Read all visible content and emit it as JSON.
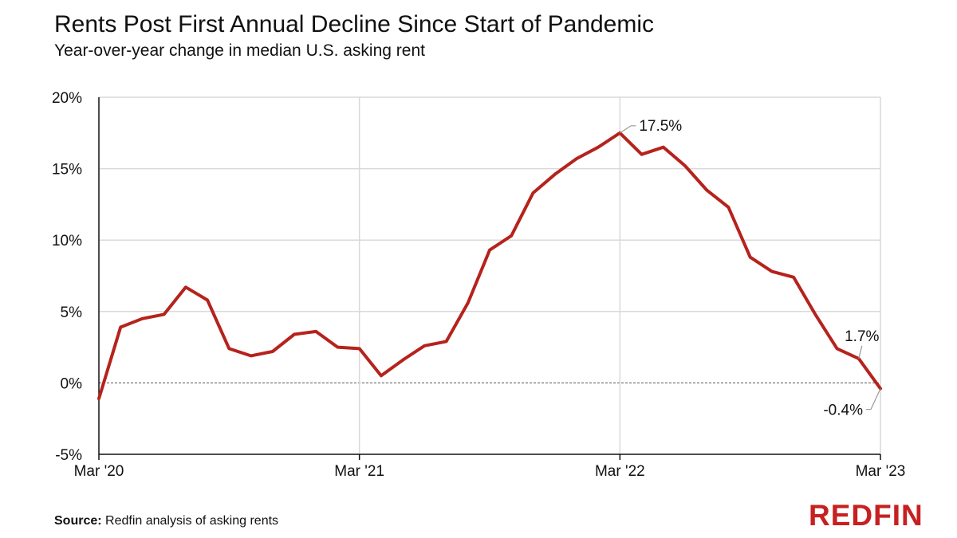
{
  "title": "Rents Post First Annual Decline Since Start of Pandemic",
  "subtitle": "Year-over-year change in median U.S. asking rent",
  "source_label": "Source:",
  "source_text": "Redfin analysis of asking rents",
  "logo_text": "REDFIN",
  "colors": {
    "line": "#b5231c",
    "grid": "#d9d9d9",
    "axis": "#111111",
    "logo": "#c82021"
  },
  "chart_data": {
    "type": "line",
    "title": "Rents Post First Annual Decline Since Start of Pandemic",
    "subtitle": "Year-over-year change in median U.S. asking rent",
    "xlabel": "",
    "ylabel": "",
    "ylim": [
      -5,
      20
    ],
    "yticks": [
      -5,
      0,
      5,
      10,
      15,
      20
    ],
    "ytick_labels": [
      "-5%",
      "0%",
      "5%",
      "10%",
      "15%",
      "20%"
    ],
    "xtick_labels": [
      "Mar '20",
      "Mar '21",
      "Mar '22",
      "Mar '23"
    ],
    "grid": true,
    "x": [
      "Mar '20",
      "Apr '20",
      "May '20",
      "Jun '20",
      "Jul '20",
      "Aug '20",
      "Sep '20",
      "Oct '20",
      "Nov '20",
      "Dec '20",
      "Jan '21",
      "Feb '21",
      "Mar '21",
      "Apr '21",
      "May '21",
      "Jun '21",
      "Jul '21",
      "Aug '21",
      "Sep '21",
      "Oct '21",
      "Nov '21",
      "Dec '21",
      "Jan '22",
      "Feb '22",
      "Mar '22",
      "Apr '22",
      "May '22",
      "Jun '22",
      "Jul '22",
      "Aug '22",
      "Sep '22",
      "Oct '22",
      "Nov '22",
      "Dec '22",
      "Jan '23",
      "Feb '23",
      "Mar '23"
    ],
    "series": [
      {
        "values": [
          -1.1,
          3.9,
          4.5,
          4.8,
          6.7,
          5.8,
          2.4,
          1.9,
          2.2,
          3.4,
          3.6,
          2.5,
          2.4,
          0.5,
          1.6,
          2.6,
          2.9,
          5.6,
          9.3,
          10.3,
          13.3,
          14.6,
          15.7,
          16.5,
          17.5,
          16.0,
          16.5,
          15.2,
          13.5,
          12.3,
          8.8,
          7.8,
          7.4,
          4.8,
          2.4,
          1.7,
          -0.4
        ]
      }
    ],
    "annotations": [
      {
        "label": "17.5%",
        "x": "Mar '22",
        "y": 17.5
      },
      {
        "label": "1.7%",
        "x": "Feb '23",
        "y": 1.7
      },
      {
        "label": "-0.4%",
        "x": "Mar '23",
        "y": -0.4
      }
    ]
  }
}
